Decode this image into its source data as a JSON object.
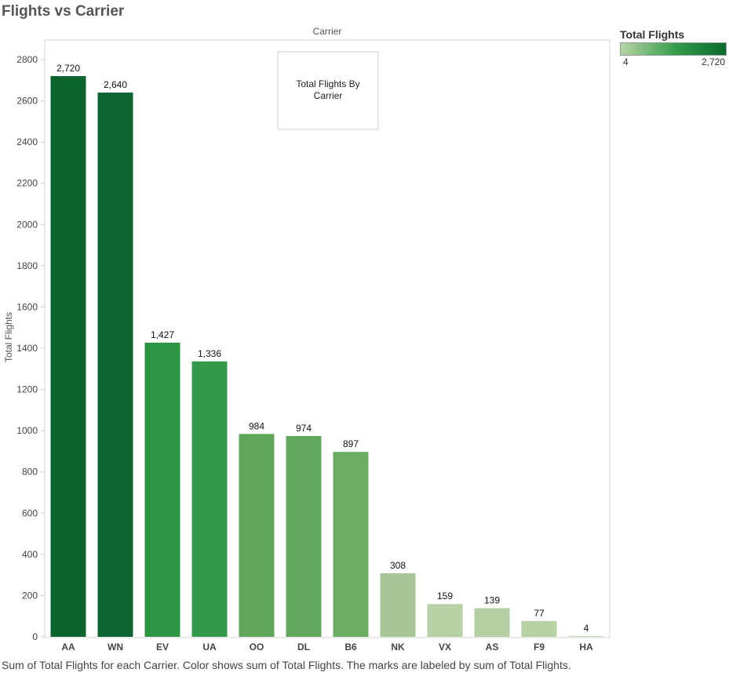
{
  "title": "Flights vs Carrier",
  "legend": {
    "title": "Total Flights",
    "min_label": "4",
    "max_label": "2,720"
  },
  "caption": "Sum of Total Flights for each Carrier.  Color shows sum of Total Flights.  The marks are labeled by sum of Total Flights.",
  "chart_data": {
    "type": "bar",
    "title": "Carrier",
    "xlabel": "",
    "ylabel": "Total Flights",
    "annotation": "Total Flights By Carrier",
    "categories": [
      "AA",
      "WN",
      "EV",
      "UA",
      "OO",
      "DL",
      "B6",
      "NK",
      "VX",
      "AS",
      "F9",
      "HA"
    ],
    "values": [
      2720,
      2640,
      1427,
      1336,
      984,
      974,
      897,
      308,
      159,
      139,
      77,
      4
    ],
    "data_labels": [
      "2,720",
      "2,640",
      "1,427",
      "1,336",
      "984",
      "974",
      "897",
      "308",
      "159",
      "139",
      "77",
      "4"
    ],
    "colors": [
      "#0b642c",
      "#0c6530",
      "#2e9545",
      "#339a4a",
      "#5fa65b",
      "#61a75e",
      "#6aac61",
      "#a7c695",
      "#b6d1a6",
      "#b4cfa3",
      "#b6d1a4",
      "#c0d8b4"
    ],
    "yticks": [
      0,
      200,
      400,
      600,
      800,
      1000,
      1200,
      1400,
      1600,
      1800,
      2000,
      2200,
      2400,
      2600,
      2800
    ],
    "ylim": [
      0,
      2900
    ],
    "grid": false,
    "legend_position": "top-right"
  }
}
